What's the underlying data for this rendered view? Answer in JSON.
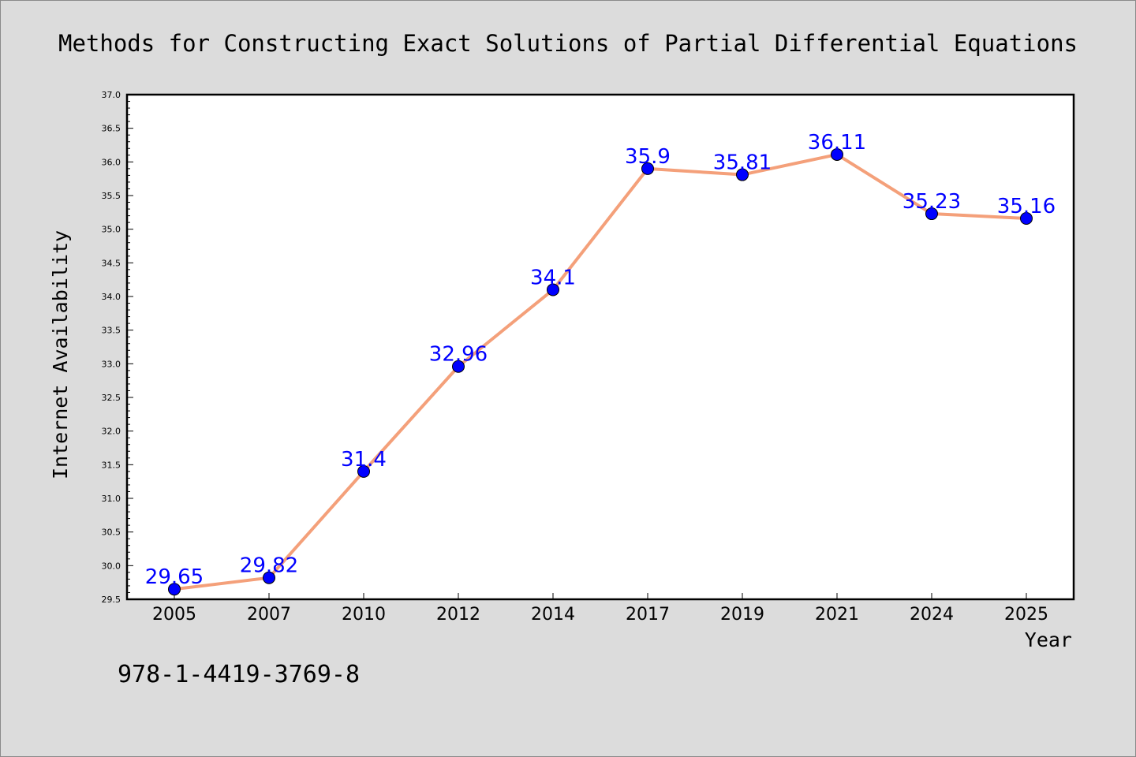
{
  "chart_data": {
    "type": "line",
    "title": "Methods for Constructing Exact Solutions of Partial Differential Equations",
    "xlabel": "Year",
    "ylabel": "Internet Availability",
    "categories": [
      "2005",
      "2007",
      "2010",
      "2012",
      "2014",
      "2017",
      "2019",
      "2021",
      "2024",
      "2025"
    ],
    "series": [
      {
        "values": [
          29.65,
          29.82,
          31.4,
          32.96,
          34.1,
          35.9,
          35.81,
          36.11,
          35.23,
          35.16
        ],
        "data_labels": [
          "29.65",
          "29.82",
          "31.4",
          "32.96",
          "34.1",
          "35.9",
          "35.81",
          "36.11",
          "35.23",
          "35.16"
        ],
        "line_color": "#f4a07a",
        "marker_color": "#0000ff"
      }
    ],
    "ylim": [
      29.5,
      37.0
    ],
    "yticks": [
      "29.5",
      "30.0",
      "30.5",
      "31.0",
      "31.5",
      "32.0",
      "32.5",
      "33.0",
      "33.5",
      "34.0",
      "34.5",
      "35.0",
      "35.5",
      "36.0",
      "36.5",
      "37.0"
    ],
    "grid": false,
    "legend": "none"
  },
  "annotation": {
    "isbn": "978-1-4419-3769-8"
  },
  "colors": {
    "background": "#dcdcdc",
    "plot_area": "#ffffff",
    "line": "#f4a07a",
    "marker": "#0000ff",
    "data_label": "#0000ff"
  }
}
